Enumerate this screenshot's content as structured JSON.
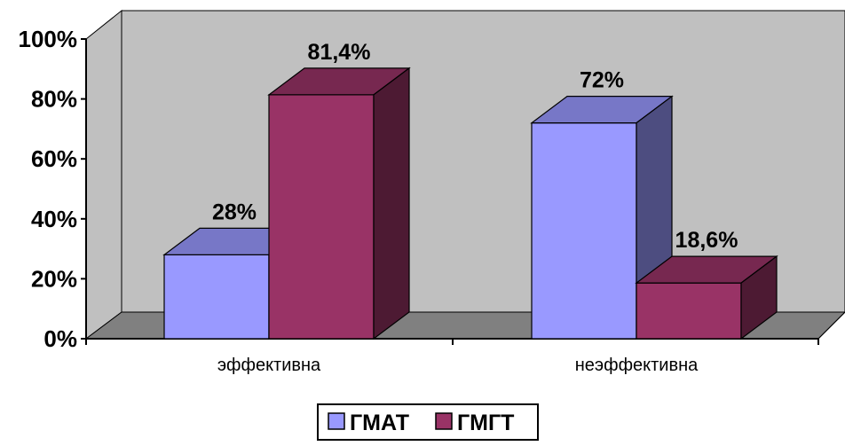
{
  "chart_data": {
    "type": "bar",
    "style": "3d-clustered-column",
    "categories": [
      "эффективна",
      "неэффективна"
    ],
    "series": [
      {
        "name": "ГМАТ",
        "values": [
          28,
          72
        ],
        "labels": [
          "28%",
          "72%"
        ],
        "color": "#9999FF"
      },
      {
        "name": "ГМГТ",
        "values": [
          81.4,
          18.6
        ],
        "labels": [
          "81,4%",
          "18,6%"
        ],
        "color": "#993366"
      }
    ],
    "y_ticks": [
      "0%",
      "20%",
      "40%",
      "60%",
      "80%",
      "100%"
    ],
    "ylim": [
      0,
      100
    ],
    "legend_position": "bottom",
    "grid": false,
    "wall_color": "#C0C0C0",
    "floor_color": "#808080"
  }
}
